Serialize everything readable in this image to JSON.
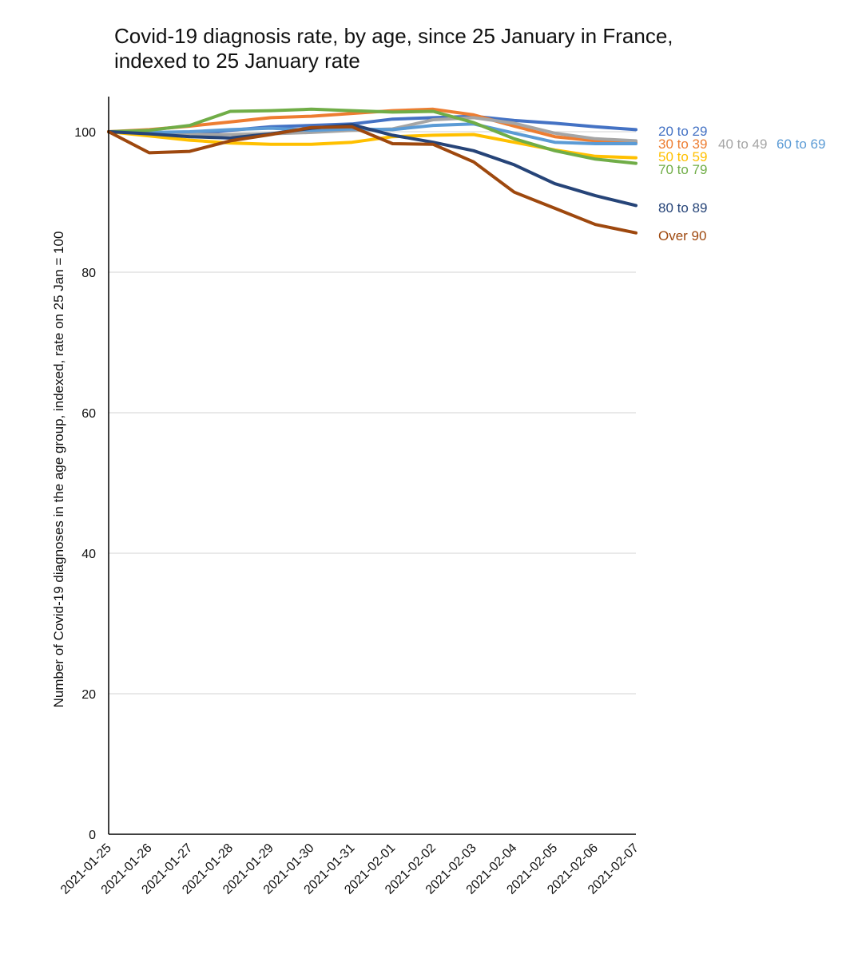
{
  "chart_data": {
    "type": "line",
    "title": "Covid-19 diagnosis rate, by age, since 25 January in France, indexed to 25 January rate",
    "xlabel": "",
    "ylabel": "Number of Covid-19 diagnoses in the age group, indexed, rate on 25 Jan = 100",
    "x": [
      "2021-01-25",
      "2021-01-26",
      "2021-01-27",
      "2021-01-28",
      "2021-01-29",
      "2021-01-30",
      "2021-01-31",
      "2021-02-01",
      "2021-02-02",
      "2021-02-03",
      "2021-02-04",
      "2021-02-05",
      "2021-02-06",
      "2021-02-07"
    ],
    "ylim": [
      0,
      105
    ],
    "yticks": [
      0,
      20,
      40,
      60,
      80,
      100
    ],
    "grid": true,
    "legend": "direct labels at right end of lines",
    "series": [
      {
        "name": "20 to 29",
        "color": "#4472C4",
        "values": [
          100,
          99.6,
          99.7,
          100.2,
          100.7,
          100.9,
          101.1,
          101.8,
          102.0,
          102.2,
          101.6,
          101.2,
          100.7,
          100.3
        ]
      },
      {
        "name": "30 to 39",
        "color": "#ED7D31",
        "values": [
          100,
          100.3,
          100.8,
          101.4,
          102.0,
          102.2,
          102.6,
          103.0,
          103.2,
          102.4,
          100.8,
          99.3,
          98.7,
          98.5
        ]
      },
      {
        "name": "40 to 49",
        "color": "#A5A5A5",
        "values": [
          100,
          99.8,
          99.6,
          99.6,
          99.7,
          99.9,
          100.2,
          100.4,
          101.7,
          102.0,
          101.2,
          99.8,
          99.0,
          98.7
        ]
      },
      {
        "name": "60 to 69",
        "color": "#5B9BD5",
        "values": [
          100,
          99.9,
          100.0,
          100.3,
          100.5,
          100.2,
          100.4,
          100.3,
          100.9,
          101.1,
          99.8,
          98.5,
          98.3,
          98.3
        ]
      },
      {
        "name": "50 to 59",
        "color": "#FFC000",
        "values": [
          100,
          99.4,
          98.8,
          98.4,
          98.2,
          98.2,
          98.5,
          99.3,
          99.5,
          99.6,
          98.5,
          97.4,
          96.5,
          96.3
        ]
      },
      {
        "name": "70 to 79",
        "color": "#70AD47",
        "values": [
          100,
          100.2,
          100.9,
          102.9,
          103.0,
          103.2,
          103.0,
          102.8,
          102.9,
          101.3,
          99.0,
          97.3,
          96.1,
          95.5
        ]
      },
      {
        "name": "80 to 89",
        "color": "#264478",
        "values": [
          100,
          99.7,
          99.3,
          99.1,
          99.7,
          100.5,
          101.0,
          99.5,
          98.5,
          97.3,
          95.3,
          92.6,
          90.9,
          89.5
        ]
      },
      {
        "name": "Over 90",
        "color": "#9E480E",
        "values": [
          100,
          97.0,
          97.2,
          98.7,
          99.6,
          100.6,
          100.7,
          98.3,
          98.2,
          95.7,
          91.4,
          89.1,
          86.8,
          85.6
        ]
      }
    ],
    "end_labels": [
      {
        "series": "20 to 29",
        "text": "20 to 29"
      },
      {
        "series": "30 to 39",
        "text": "30 to 39"
      },
      {
        "series": "40 to 49",
        "text": "40 to 49"
      },
      {
        "series": "60 to 69",
        "text": "60 to 69"
      },
      {
        "series": "50 to 59",
        "text": "50 to 59"
      },
      {
        "series": "70 to 79",
        "text": "70 to 79"
      },
      {
        "series": "80 to 89",
        "text": "80 to 89"
      },
      {
        "series": "Over 90",
        "text": "Over 90"
      }
    ]
  }
}
